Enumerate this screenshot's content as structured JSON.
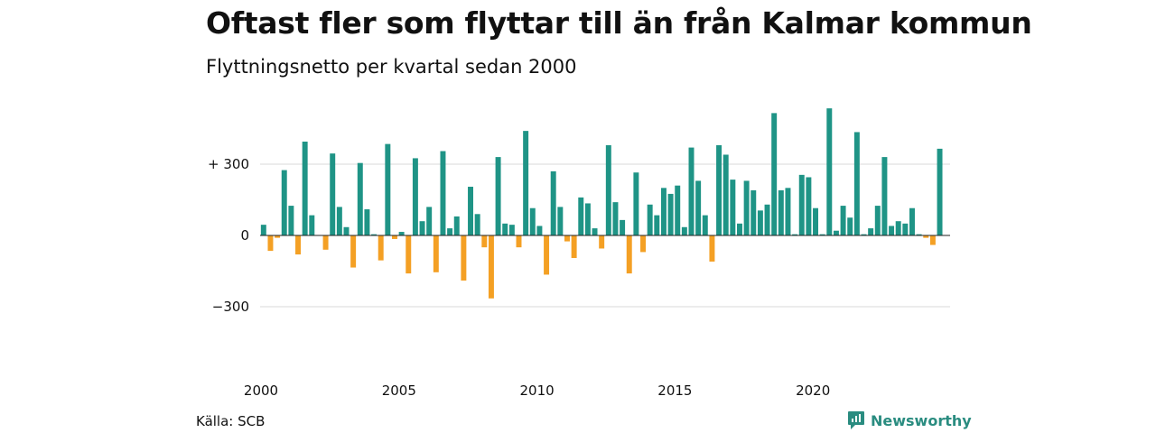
{
  "title": "Oftast fler som flyttar till än från Kalmar kommun",
  "subtitle": "Flyttningsnetto per kvartal sedan 2000",
  "source": "Källa: SCB",
  "brand": {
    "name": "Newsworthy",
    "icon": "newsworthy-logo-icon"
  },
  "colors": {
    "positive": "#1f9486",
    "negative": "#f4a024",
    "grid": "#d9d9d9",
    "brand": "#2a8c80"
  },
  "chart_data": {
    "type": "bar",
    "title": "Oftast fler som flyttar till än från Kalmar kommun",
    "subtitle": "Flyttningsnetto per kvartal sedan 2000",
    "xlabel": "",
    "ylabel": "",
    "ylim": [
      -300,
      550
    ],
    "grid": true,
    "legend": "none",
    "y_ticks": [
      {
        "value": 300,
        "label": "+ 300"
      },
      {
        "value": 0,
        "label": "0"
      },
      {
        "value": -300,
        "label": "−300"
      }
    ],
    "x_ticks": [
      {
        "value": 2000,
        "label": "2000"
      },
      {
        "value": 2005,
        "label": "2005"
      },
      {
        "value": 2010,
        "label": "2010"
      },
      {
        "value": 2015,
        "label": "2015"
      },
      {
        "value": 2020,
        "label": "2020"
      }
    ],
    "start_year": 2000,
    "categories": [
      "2000 Q1",
      "2000 Q2",
      "2000 Q3",
      "2000 Q4",
      "2001 Q1",
      "2001 Q2",
      "2001 Q3",
      "2001 Q4",
      "2002 Q1",
      "2002 Q2",
      "2002 Q3",
      "2002 Q4",
      "2003 Q1",
      "2003 Q2",
      "2003 Q3",
      "2003 Q4",
      "2004 Q1",
      "2004 Q2",
      "2004 Q3",
      "2004 Q4",
      "2005 Q1",
      "2005 Q2",
      "2005 Q3",
      "2005 Q4",
      "2006 Q1",
      "2006 Q2",
      "2006 Q3",
      "2006 Q4",
      "2007 Q1",
      "2007 Q2",
      "2007 Q3",
      "2007 Q4",
      "2008 Q1",
      "2008 Q2",
      "2008 Q3",
      "2008 Q4",
      "2009 Q1",
      "2009 Q2",
      "2009 Q3",
      "2009 Q4",
      "2010 Q1",
      "2010 Q2",
      "2010 Q3",
      "2010 Q4",
      "2011 Q1",
      "2011 Q2",
      "2011 Q3",
      "2011 Q4",
      "2012 Q1",
      "2012 Q2",
      "2012 Q3",
      "2012 Q4",
      "2013 Q1",
      "2013 Q2",
      "2013 Q3",
      "2013 Q4",
      "2014 Q1",
      "2014 Q2",
      "2014 Q3",
      "2014 Q4",
      "2015 Q1",
      "2015 Q2",
      "2015 Q3",
      "2015 Q4",
      "2016 Q1",
      "2016 Q2",
      "2016 Q3",
      "2016 Q4",
      "2017 Q1",
      "2017 Q2",
      "2017 Q3",
      "2017 Q4",
      "2018 Q1",
      "2018 Q2",
      "2018 Q3",
      "2018 Q4",
      "2019 Q1",
      "2019 Q2",
      "2019 Q3",
      "2019 Q4",
      "2020 Q1",
      "2020 Q2",
      "2020 Q3",
      "2020 Q4",
      "2021 Q1",
      "2021 Q2",
      "2021 Q3",
      "2021 Q4",
      "2022 Q1",
      "2022 Q2",
      "2022 Q3",
      "2022 Q4",
      "2023 Q1",
      "2023 Q2",
      "2023 Q3",
      "2023 Q4",
      "2024 Q1",
      "2024 Q2",
      "2024 Q3",
      "2024 Q4"
    ],
    "values": [
      45,
      -65,
      -10,
      275,
      125,
      -80,
      395,
      85,
      0,
      -60,
      345,
      120,
      35,
      -135,
      305,
      110,
      5,
      -105,
      385,
      -15,
      15,
      -160,
      325,
      60,
      120,
      -155,
      355,
      30,
      80,
      -190,
      205,
      90,
      -50,
      -265,
      330,
      50,
      45,
      -50,
      440,
      115,
      40,
      -165,
      270,
      120,
      -25,
      -95,
      160,
      135,
      30,
      -55,
      380,
      140,
      65,
      -160,
      265,
      -70,
      130,
      85,
      200,
      175,
      210,
      35,
      370,
      230,
      85,
      -110,
      380,
      340,
      235,
      50,
      230,
      190,
      105,
      130,
      515,
      190,
      200,
      5,
      255,
      245,
      115,
      5,
      535,
      20,
      125,
      75,
      435,
      5,
      30,
      125,
      330,
      40,
      60,
      50,
      115,
      5,
      -10,
      -40,
      365,
      0
    ]
  }
}
